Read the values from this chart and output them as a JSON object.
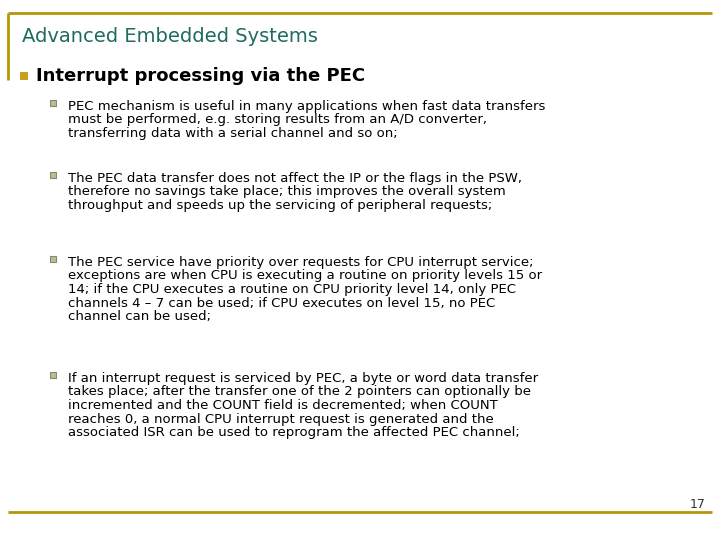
{
  "title": "Advanced Embedded Systems",
  "title_color": "#1F6B5E",
  "title_fontsize": 14,
  "border_color": "#B8960C",
  "bullet_main": "Interrupt processing via the PEC",
  "bullet_main_color": "#000000",
  "bullet_main_fontsize": 13,
  "bullet_square_color": "#C8A020",
  "sub_bullet_square_color": "#A0A880",
  "sub_bullets": [
    "PEC mechanism is useful in many applications when fast data transfers\nmust be performed, e.g. storing results from an A/D converter,\ntransferring data with a serial channel and so on;",
    "The PEC data transfer does not affect the IP or the flags in the PSW,\ntherefore no savings take place; this improves the overall system\nthroughput and speeds up the servicing of peripheral requests;",
    "The PEC service have priority over requests for CPU interrupt service;\nexceptions are when CPU is executing a routine on priority levels 15 or\n14; if the CPU executes a routine on CPU priority level 14, only PEC\nchannels 4 – 7 can be used; if CPU executes on level 15, no PEC\nchannel can be used;",
    "If an interrupt request is serviced by PEC, a byte or word data transfer\ntakes place; after the transfer one of the 2 pointers can optionally be\nincremented and the COUNT field is decremented; when COUNT\nreaches 0, a normal CPU interrupt request is generated and the\nassociated ISR can be used to reprogram the affected PEC channel;"
  ],
  "sub_bullet_fontsize": 9.5,
  "sub_bullet_color": "#000000",
  "page_number": "17",
  "bg_color": "#FFFFFF"
}
